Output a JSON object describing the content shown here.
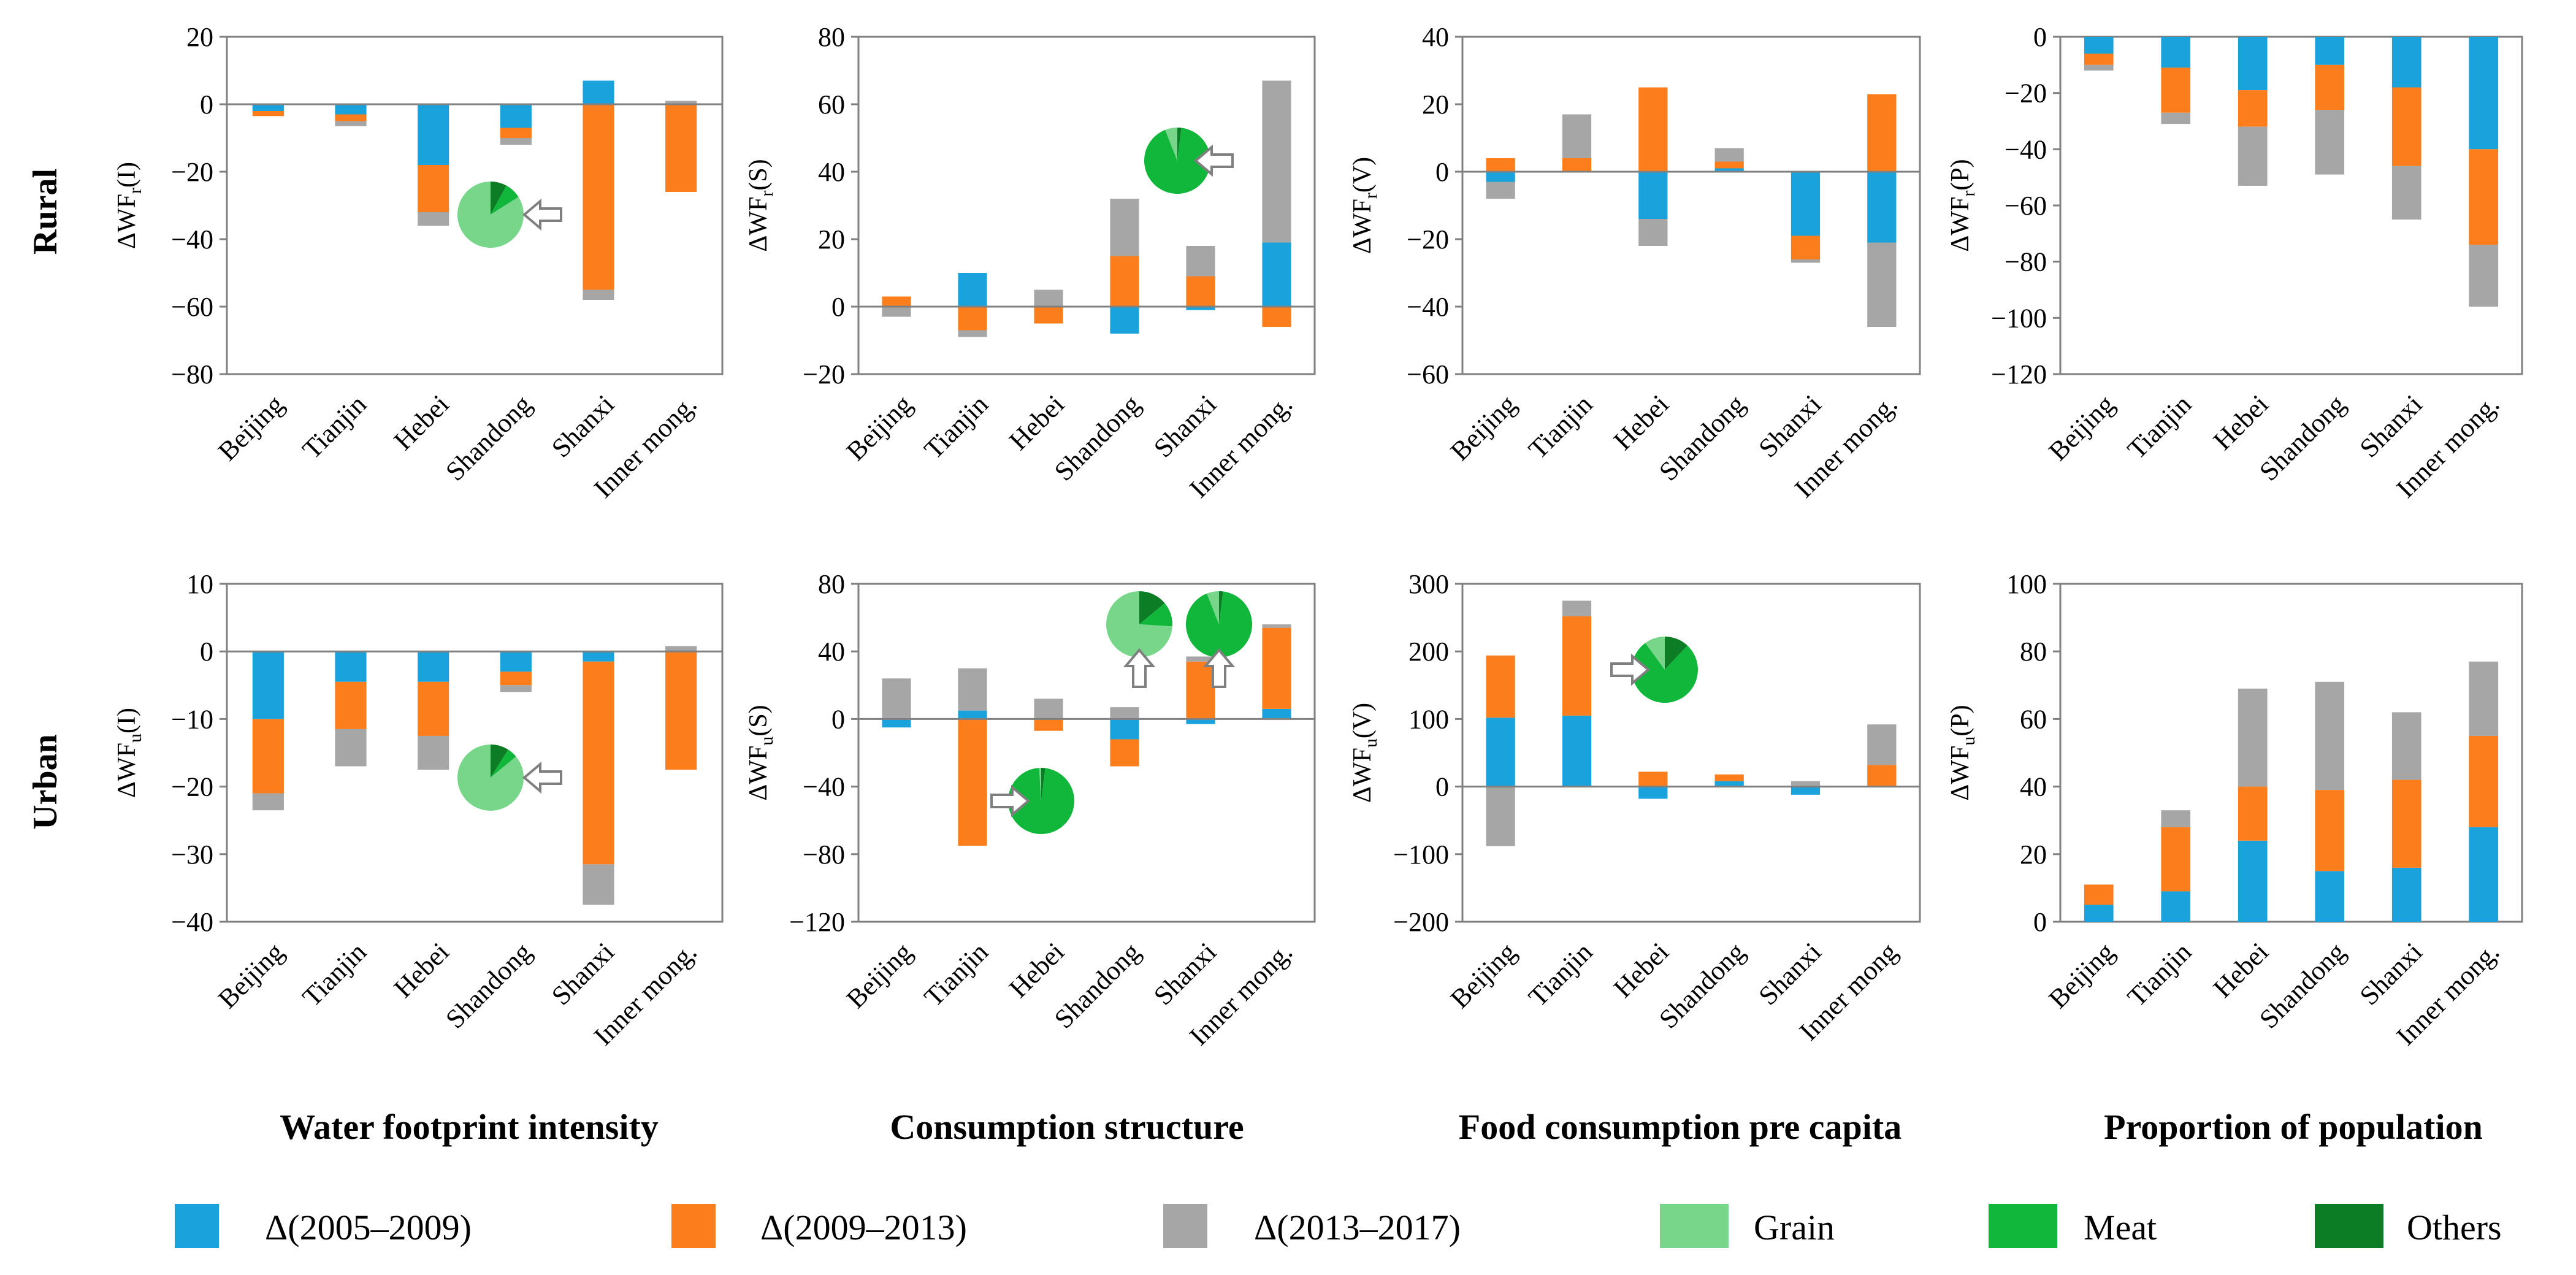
{
  "row_labels": [
    "Rural",
    "Urban"
  ],
  "column_titles": [
    "Water footprint intensity",
    "Consumption structure",
    "Food consumption pre capita",
    "Proportion of population"
  ],
  "colors": {
    "d0509": "#1aa2dc",
    "d0913": "#fb7d1c",
    "d1317": "#a6a6a6",
    "grain": "#78d68a",
    "meat": "#11b73a",
    "others": "#0c7d25",
    "axis": "#808080"
  },
  "legend": [
    {
      "label": "Δ(2005–2009)",
      "color": "#1aa2dc"
    },
    {
      "label": "Δ(2009–2013)",
      "color": "#fb7d1c"
    },
    {
      "label": "Δ(2013–2017)",
      "color": "#a6a6a6"
    },
    {
      "label": "Grain",
      "color": "#78d68a"
    },
    {
      "label": "Meat",
      "color": "#11b73a"
    },
    {
      "label": "Others",
      "color": "#0c7d25"
    }
  ],
  "chart_data": [
    {
      "type": "bar",
      "stacked": true,
      "row": "Rural",
      "column": "Water footprint intensity",
      "ylabel": {
        "main": "ΔWF",
        "sub": "r",
        "tail": "(I)"
      },
      "ylim": [
        -80,
        20
      ],
      "yticks": [
        -80,
        -60,
        -40,
        -20,
        0,
        20
      ],
      "categories": [
        "Beijing",
        "Tianjin",
        "Hebei",
        "Shandong",
        "Shanxi",
        "Inner mong."
      ],
      "series": [
        {
          "name": "Δ(2005–2009)",
          "values": [
            -2,
            -3,
            -18,
            -7,
            7,
            0
          ]
        },
        {
          "name": "Δ(2009–2013)",
          "values": [
            -1.5,
            -2,
            -14,
            -3,
            -55,
            -26
          ]
        },
        {
          "name": "Δ(2013–2017)",
          "values": [
            0,
            -1.5,
            -4,
            -2,
            -3,
            1
          ]
        }
      ],
      "annotations": [
        {
          "shares": {
            "grain": 0.84,
            "meat": 0.08,
            "others": 0.08
          },
          "arrow": "left"
        }
      ]
    },
    {
      "type": "bar",
      "stacked": true,
      "row": "Rural",
      "column": "Consumption structure",
      "ylabel": {
        "main": "ΔWF",
        "sub": "r",
        "tail": "(S)"
      },
      "ylim": [
        -20,
        80
      ],
      "yticks": [
        -20,
        0,
        20,
        40,
        60,
        80
      ],
      "categories": [
        "Beijing",
        "Tianjin",
        "Hebei",
        "Shandong",
        "Shanxi",
        "Inner mong."
      ],
      "series": [
        {
          "name": "Δ(2005–2009)",
          "values": [
            0,
            10,
            0,
            -8,
            -1,
            19
          ]
        },
        {
          "name": "Δ(2009–2013)",
          "values": [
            3,
            -7,
            -5,
            15,
            9,
            -6
          ]
        },
        {
          "name": "Δ(2013–2017)",
          "values": [
            -3,
            -2,
            5,
            17,
            9,
            48
          ]
        }
      ],
      "annotations": [
        {
          "shares": {
            "grain": 0.06,
            "meat": 0.92,
            "others": 0.02
          },
          "arrow": "left"
        }
      ]
    },
    {
      "type": "bar",
      "stacked": true,
      "row": "Rural",
      "column": "Food consumption pre capita",
      "ylabel": {
        "main": "ΔWF",
        "sub": "r",
        "tail": "(V)"
      },
      "ylim": [
        -60,
        40
      ],
      "yticks": [
        -60,
        -40,
        -20,
        0,
        20,
        40
      ],
      "categories": [
        "Beijing",
        "Tianjin",
        "Hebei",
        "Shandong",
        "Shanxi",
        "Inner mong."
      ],
      "series": [
        {
          "name": "Δ(2005–2009)",
          "values": [
            -3,
            0,
            -14,
            1,
            -19,
            -21
          ]
        },
        {
          "name": "Δ(2009–2013)",
          "values": [
            4,
            4,
            25,
            2,
            -7,
            23
          ]
        },
        {
          "name": "Δ(2013–2017)",
          "values": [
            -5,
            13,
            -8,
            4,
            -1,
            -25
          ]
        }
      ],
      "annotations": []
    },
    {
      "type": "bar",
      "stacked": true,
      "row": "Rural",
      "column": "Proportion of population",
      "ylabel": {
        "main": "ΔWF",
        "sub": "r",
        "tail": "(P)"
      },
      "ylim": [
        -120,
        0
      ],
      "yticks": [
        -120,
        -100,
        -80,
        -60,
        -40,
        -20,
        0
      ],
      "categories": [
        "Beijing",
        "Tianjin",
        "Hebei",
        "Shandong",
        "Shanxi",
        "Inner mong."
      ],
      "series": [
        {
          "name": "Δ(2005–2009)",
          "values": [
            -6,
            -11,
            -19,
            -10,
            -18,
            -40
          ]
        },
        {
          "name": "Δ(2009–2013)",
          "values": [
            -4,
            -16,
            -13,
            -16,
            -28,
            -34
          ]
        },
        {
          "name": "Δ(2013–2017)",
          "values": [
            -2,
            -4,
            -21,
            -23,
            -19,
            -22
          ]
        }
      ],
      "annotations": []
    },
    {
      "type": "bar",
      "stacked": true,
      "row": "Urban",
      "column": "Water footprint intensity",
      "ylabel": {
        "main": "ΔWF",
        "sub": "u",
        "tail": "(I)"
      },
      "ylim": [
        -40,
        10
      ],
      "yticks": [
        -40,
        -30,
        -20,
        -10,
        0,
        10
      ],
      "categories": [
        "Beijing",
        "Tianjin",
        "Hebei",
        "Shandong",
        "Shanxi",
        "Inner mong."
      ],
      "series": [
        {
          "name": "Δ(2005–2009)",
          "values": [
            -10,
            -4.5,
            -4.5,
            -3,
            -1.5,
            0
          ]
        },
        {
          "name": "Δ(2009–2013)",
          "values": [
            -11,
            -7,
            -8,
            -2,
            -30,
            -17.5
          ]
        },
        {
          "name": "Δ(2013–2017)",
          "values": [
            -2.5,
            -5.5,
            -5,
            -1,
            -6,
            0.8
          ]
        }
      ],
      "annotations": [
        {
          "shares": {
            "grain": 0.86,
            "meat": 0.05,
            "others": 0.09
          },
          "arrow": "left"
        }
      ]
    },
    {
      "type": "bar",
      "stacked": true,
      "row": "Urban",
      "column": "Consumption structure",
      "ylabel": {
        "main": "ΔWF",
        "sub": "u",
        "tail": "(S)"
      },
      "ylim": [
        -120,
        80
      ],
      "yticks": [
        -120,
        -80,
        -40,
        0,
        40,
        80
      ],
      "categories": [
        "Beijing",
        "Tianjin",
        "Hebei",
        "Shandong",
        "Shanxi",
        "Inner mong."
      ],
      "series": [
        {
          "name": "Δ(2005–2009)",
          "values": [
            -5,
            5,
            0,
            -12,
            -3,
            6
          ]
        },
        {
          "name": "Δ(2009–2013)",
          "values": [
            0,
            -75,
            -7,
            -16,
            34,
            48
          ]
        },
        {
          "name": "Δ(2013–2017)",
          "values": [
            24,
            25,
            12,
            7,
            3,
            2
          ]
        }
      ],
      "annotations": [
        {
          "shares": {
            "grain": 0.01,
            "meat": 0.97,
            "others": 0.02
          },
          "arrow": "right"
        },
        {
          "shares": {
            "grain": 0.74,
            "meat": 0.12,
            "others": 0.14
          },
          "arrow": "up"
        },
        {
          "shares": {
            "grain": 0.06,
            "meat": 0.92,
            "others": 0.02
          },
          "arrow": "up"
        }
      ]
    },
    {
      "type": "bar",
      "stacked": true,
      "row": "Urban",
      "column": "Food consumption pre capita",
      "ylabel": {
        "main": "ΔWF",
        "sub": "u",
        "tail": "(V)"
      },
      "ylim": [
        -200,
        300
      ],
      "yticks": [
        -200,
        -100,
        0,
        100,
        200,
        300
      ],
      "categories": [
        "Beijing",
        "Tianjin",
        "Hebei",
        "Shandong",
        "Shanxi",
        "Inner mong"
      ],
      "series": [
        {
          "name": "Δ(2005–2009)",
          "values": [
            102,
            105,
            -18,
            8,
            -12,
            0
          ]
        },
        {
          "name": "Δ(2009–2013)",
          "values": [
            92,
            147,
            22,
            10,
            0,
            32
          ]
        },
        {
          "name": "Δ(2013–2017)",
          "values": [
            -88,
            23,
            0,
            0,
            8,
            60
          ]
        }
      ],
      "annotations": [
        {
          "shares": {
            "grain": 0.1,
            "meat": 0.78,
            "others": 0.12
          },
          "arrow": "right"
        }
      ]
    },
    {
      "type": "bar",
      "stacked": true,
      "row": "Urban",
      "column": "Proportion of population",
      "ylabel": {
        "main": "ΔWF",
        "sub": "u",
        "tail": "(P)"
      },
      "ylim": [
        0,
        100
      ],
      "yticks": [
        0,
        20,
        40,
        60,
        80,
        100
      ],
      "categories": [
        "Beijing",
        "Tianjin",
        "Hebei",
        "Shandong",
        "Shanxi",
        "Inner mong."
      ],
      "series": [
        {
          "name": "Δ(2005–2009)",
          "values": [
            5,
            9,
            24,
            15,
            16,
            28
          ]
        },
        {
          "name": "Δ(2009–2013)",
          "values": [
            6,
            19,
            16,
            24,
            26,
            27
          ]
        },
        {
          "name": "Δ(2013–2017)",
          "values": [
            0,
            5,
            29,
            32,
            20,
            22
          ]
        }
      ],
      "annotations": []
    }
  ]
}
